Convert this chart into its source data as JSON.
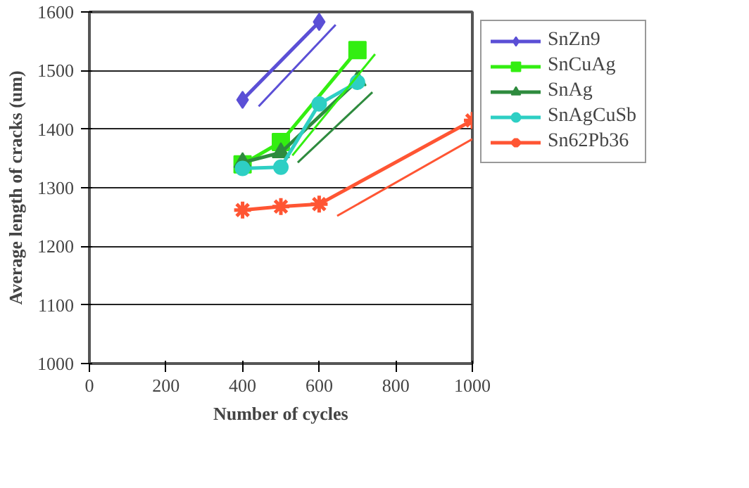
{
  "chart_data": {
    "type": "line",
    "xlabel": "Number of cycles",
    "ylabel": "Average length of cracks (um)",
    "xlim": [
      0,
      1000
    ],
    "ylim": [
      1000,
      1600
    ],
    "xticks": [
      0,
      200,
      400,
      600,
      800,
      1000
    ],
    "yticks": [
      1000,
      1100,
      1200,
      1300,
      1400,
      1500,
      1600
    ],
    "grid": "y",
    "legend": "right",
    "line_style": "solid",
    "series": [
      {
        "name": "SnZn9",
        "color": "#5b4fd6",
        "marker": "diamond",
        "x": [
          400,
          600
        ],
        "values": [
          1450,
          1583
        ]
      },
      {
        "name": "SnCuAg",
        "color": "#33ee11",
        "marker": "square",
        "x": [
          400,
          500,
          700
        ],
        "values": [
          1340,
          1378,
          1535
        ]
      },
      {
        "name": "SnAg",
        "color": "#2e8b3e",
        "marker": "triangle",
        "x": [
          400,
          500,
          700
        ],
        "values": [
          1343,
          1360,
          1483
        ]
      },
      {
        "name": "SnAgCuSb",
        "color": "#2ecfc4",
        "marker": "circle",
        "x": [
          400,
          500,
          600,
          700
        ],
        "values": [
          1333,
          1335,
          1443,
          1480
        ]
      },
      {
        "name": "Sn62Pb36",
        "color": "#ff5533",
        "marker": "cross",
        "x": [
          400,
          500,
          600,
          1000
        ],
        "values": [
          1262,
          1268,
          1272,
          1415
        ]
      },
      {
        "color": "#5b4fd6",
        "marker": "none",
        "x": [
          442,
          643
        ],
        "values": [
          1439,
          1578
        ]
      },
      {
        "color": "#33ee11",
        "marker": "none",
        "x": [
          530,
          746
        ],
        "values": [
          1355,
          1528
        ]
      },
      {
        "color": "#2e8b3e",
        "marker": "none",
        "x": [
          544,
          739
        ],
        "values": [
          1343,
          1463
        ]
      },
      {
        "color": "#ff5533",
        "marker": "none",
        "x": [
          647,
          1000
        ],
        "values": [
          1252,
          1383
        ]
      }
    ]
  }
}
